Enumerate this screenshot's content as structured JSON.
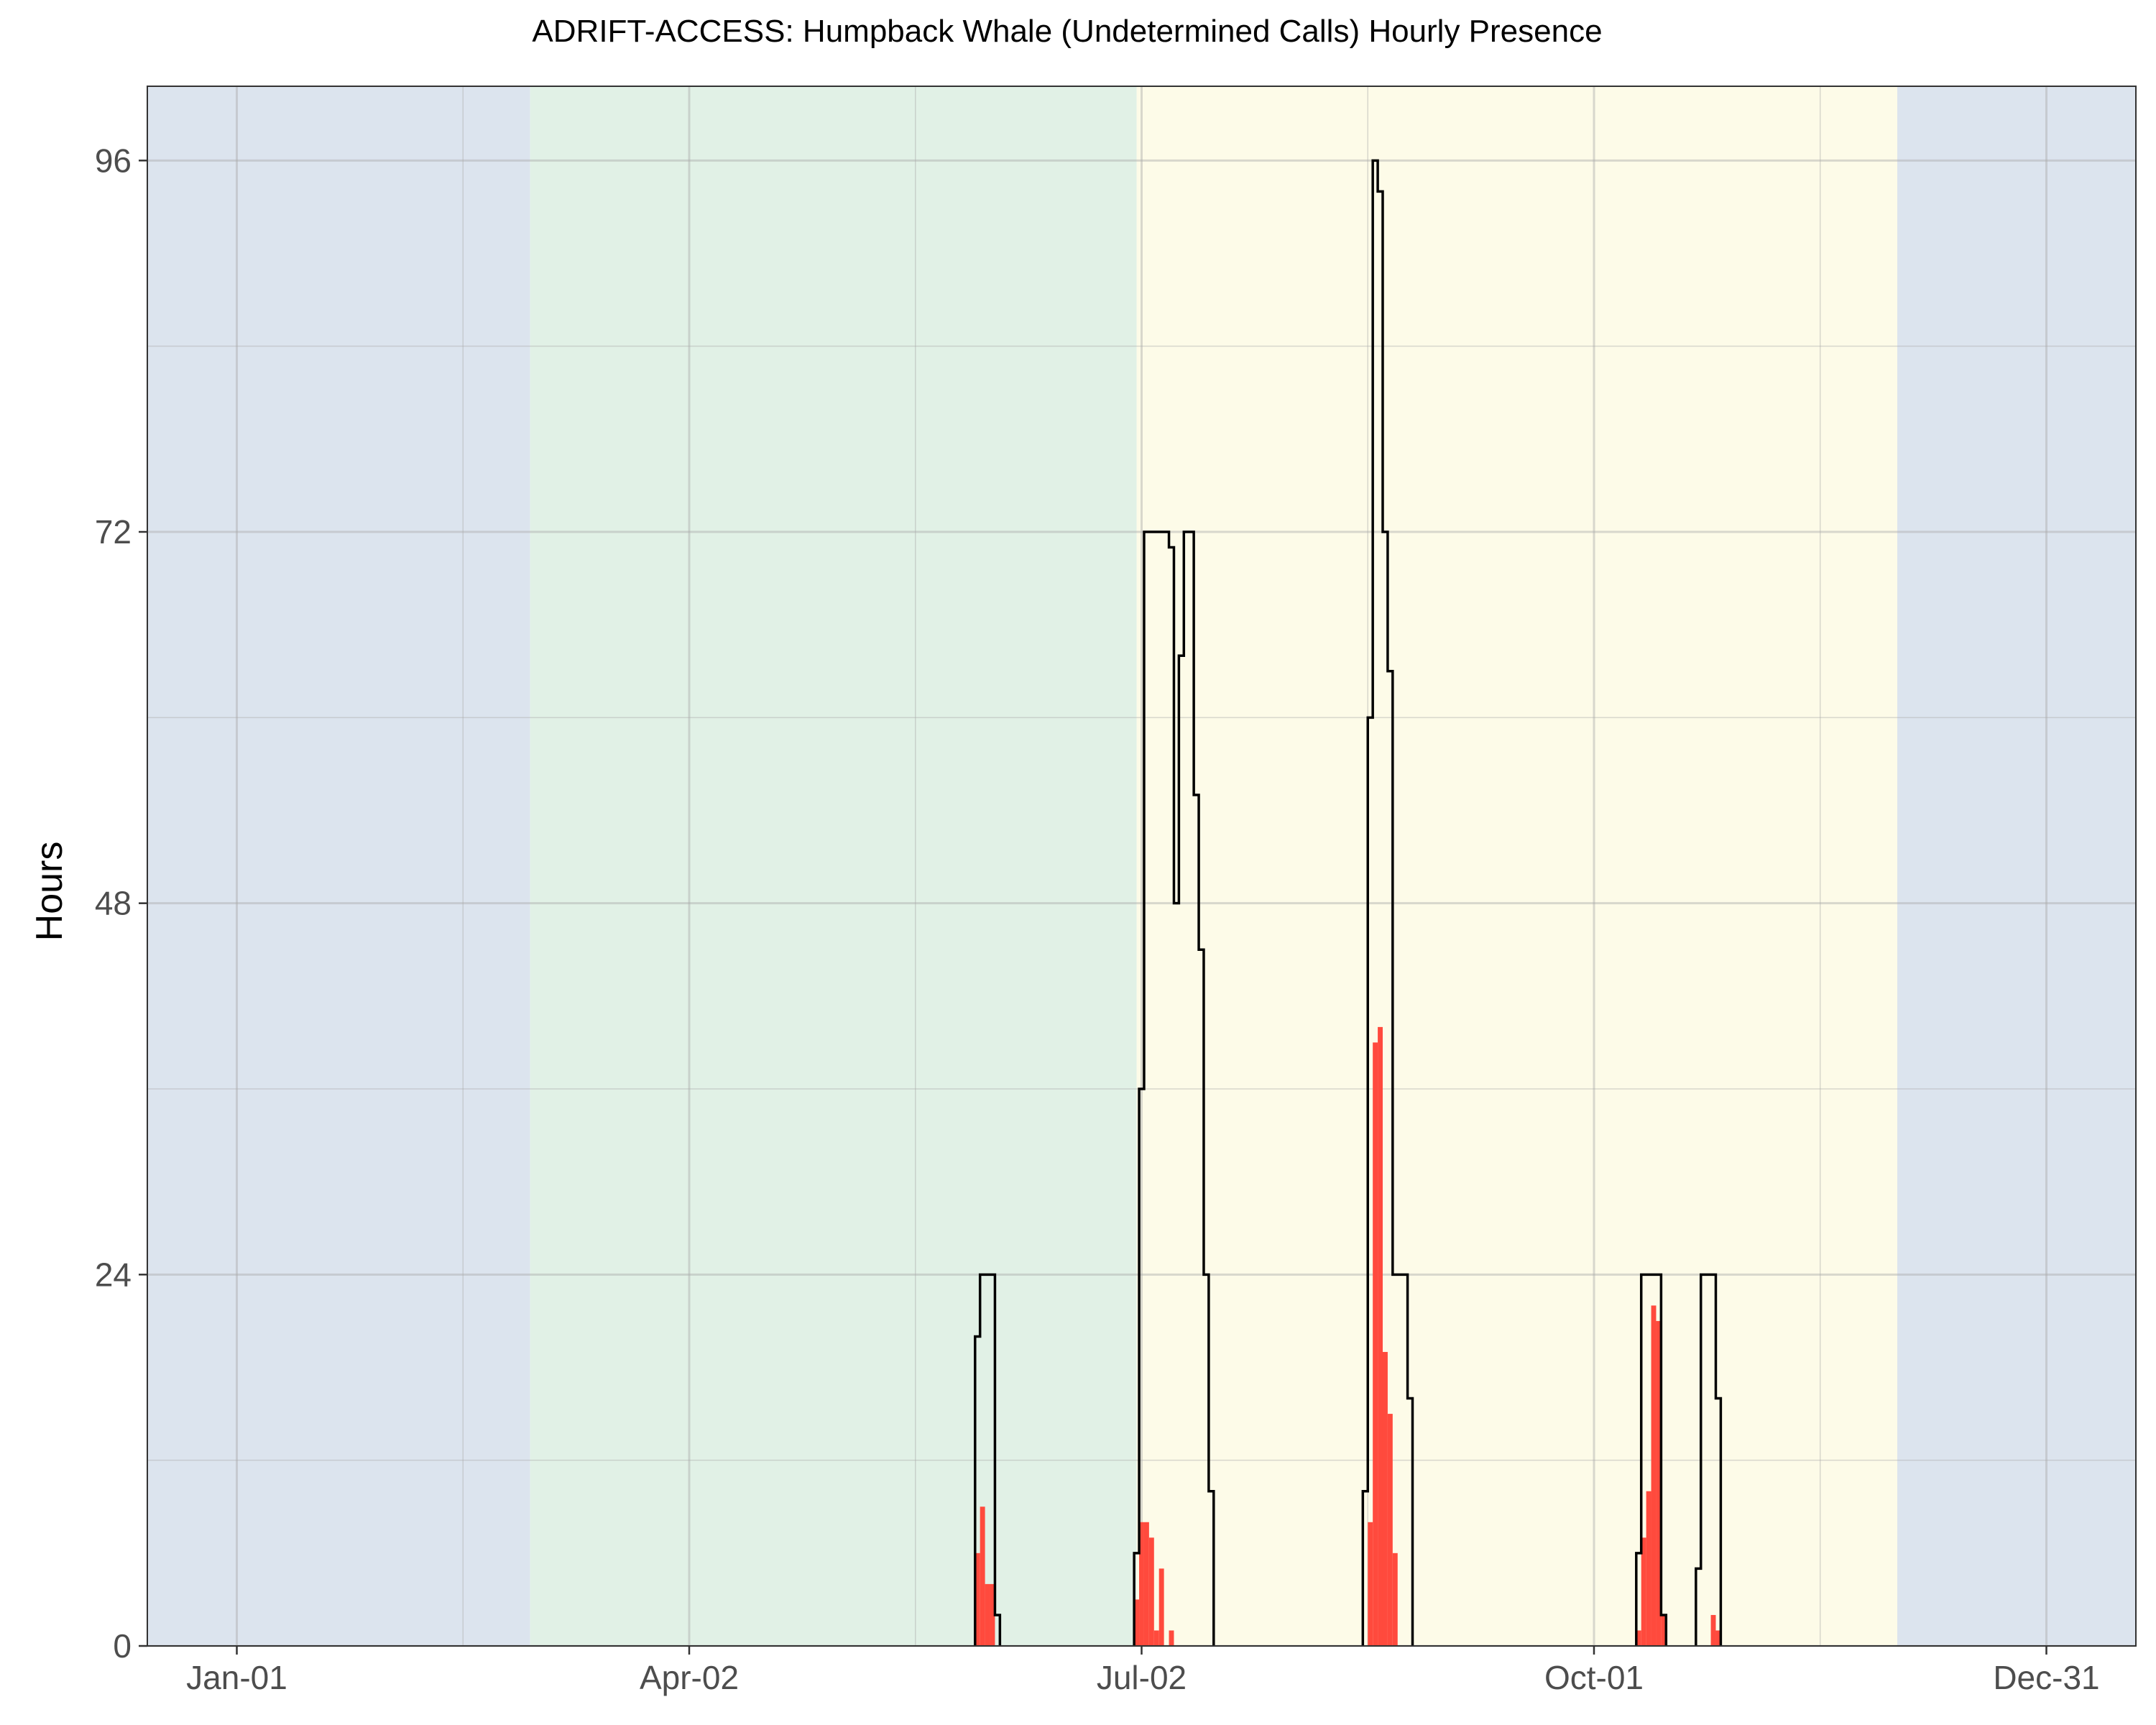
{
  "chart_data": {
    "type": "bar",
    "title": "ADRIFT-ACCESS: Humpback Whale (Undetermined Calls) Hourly Presence",
    "xlabel": "",
    "ylabel": "Hours",
    "x_tick_labels": [
      "Jan-01",
      "Apr-02",
      "Jul-02",
      "Oct-01",
      "Dec-31"
    ],
    "x_tick_days": [
      1,
      92,
      183,
      274,
      365
    ],
    "xlim": [
      -17,
      383
    ],
    "ylim": [
      0,
      100.8
    ],
    "y_ticks": [
      0,
      24,
      48,
      72,
      96
    ],
    "grid": true,
    "seasons": [
      {
        "start": -17,
        "end": 60,
        "color": "#dce4ee"
      },
      {
        "start": 60,
        "end": 182,
        "color": "#e1f1e6"
      },
      {
        "start": 182,
        "end": 335,
        "color": "#fdfbe8"
      },
      {
        "start": 335,
        "end": 383,
        "color": "#dce4ee"
      }
    ],
    "series": [
      {
        "type": "bar",
        "color": "#ff4a3d",
        "points": [
          {
            "x": 150,
            "y": 6
          },
          {
            "x": 151,
            "y": 9
          },
          {
            "x": 152,
            "y": 4
          },
          {
            "x": 153,
            "y": 4
          },
          {
            "x": 182,
            "y": 3
          },
          {
            "x": 183,
            "y": 8
          },
          {
            "x": 184,
            "y": 8
          },
          {
            "x": 185,
            "y": 7
          },
          {
            "x": 186,
            "y": 1
          },
          {
            "x": 187,
            "y": 5
          },
          {
            "x": 189,
            "y": 1
          },
          {
            "x": 229,
            "y": 8
          },
          {
            "x": 230,
            "y": 39
          },
          {
            "x": 231,
            "y": 40
          },
          {
            "x": 232,
            "y": 19
          },
          {
            "x": 233,
            "y": 15
          },
          {
            "x": 234,
            "y": 6
          },
          {
            "x": 283,
            "y": 1
          },
          {
            "x": 284,
            "y": 7
          },
          {
            "x": 285,
            "y": 10
          },
          {
            "x": 286,
            "y": 22
          },
          {
            "x": 287,
            "y": 21
          },
          {
            "x": 288,
            "y": 2
          },
          {
            "x": 298,
            "y": 2
          },
          {
            "x": 299,
            "y": 1
          }
        ]
      },
      {
        "type": "step",
        "color": "#000000",
        "steps": [
          {
            "start": 149.5,
            "end": 150.5,
            "y": 20
          },
          {
            "start": 150.5,
            "end": 153.5,
            "y": 24
          },
          {
            "start": 153.5,
            "end": 154.5,
            "y": 2
          },
          {
            "start": 181.5,
            "end": 182.5,
            "y": 6
          },
          {
            "start": 182.5,
            "end": 183.5,
            "y": 36
          },
          {
            "start": 183.5,
            "end": 188.5,
            "y": 72
          },
          {
            "start": 188.5,
            "end": 189.5,
            "y": 71
          },
          {
            "start": 189.5,
            "end": 190.5,
            "y": 48
          },
          {
            "start": 190.5,
            "end": 191.5,
            "y": 64
          },
          {
            "start": 191.5,
            "end": 193.5,
            "y": 72
          },
          {
            "start": 193.5,
            "end": 194.5,
            "y": 55
          },
          {
            "start": 194.5,
            "end": 195.5,
            "y": 45
          },
          {
            "start": 195.5,
            "end": 196.5,
            "y": 24
          },
          {
            "start": 196.5,
            "end": 197.5,
            "y": 10
          },
          {
            "start": 227.5,
            "end": 228.5,
            "y": 10
          },
          {
            "start": 228.5,
            "end": 229.5,
            "y": 60
          },
          {
            "start": 229.5,
            "end": 230.5,
            "y": 96
          },
          {
            "start": 230.5,
            "end": 231.5,
            "y": 94
          },
          {
            "start": 231.5,
            "end": 232.5,
            "y": 72
          },
          {
            "start": 232.5,
            "end": 233.5,
            "y": 63
          },
          {
            "start": 233.5,
            "end": 236.5,
            "y": 24
          },
          {
            "start": 236.5,
            "end": 237.5,
            "y": 16
          },
          {
            "start": 282.5,
            "end": 283.5,
            "y": 6
          },
          {
            "start": 283.5,
            "end": 287.5,
            "y": 24
          },
          {
            "start": 287.5,
            "end": 288.5,
            "y": 2
          },
          {
            "start": 294.5,
            "end": 295.5,
            "y": 5
          },
          {
            "start": 295.5,
            "end": 298.5,
            "y": 24
          },
          {
            "start": 298.5,
            "end": 299.5,
            "y": 16
          }
        ]
      }
    ]
  }
}
